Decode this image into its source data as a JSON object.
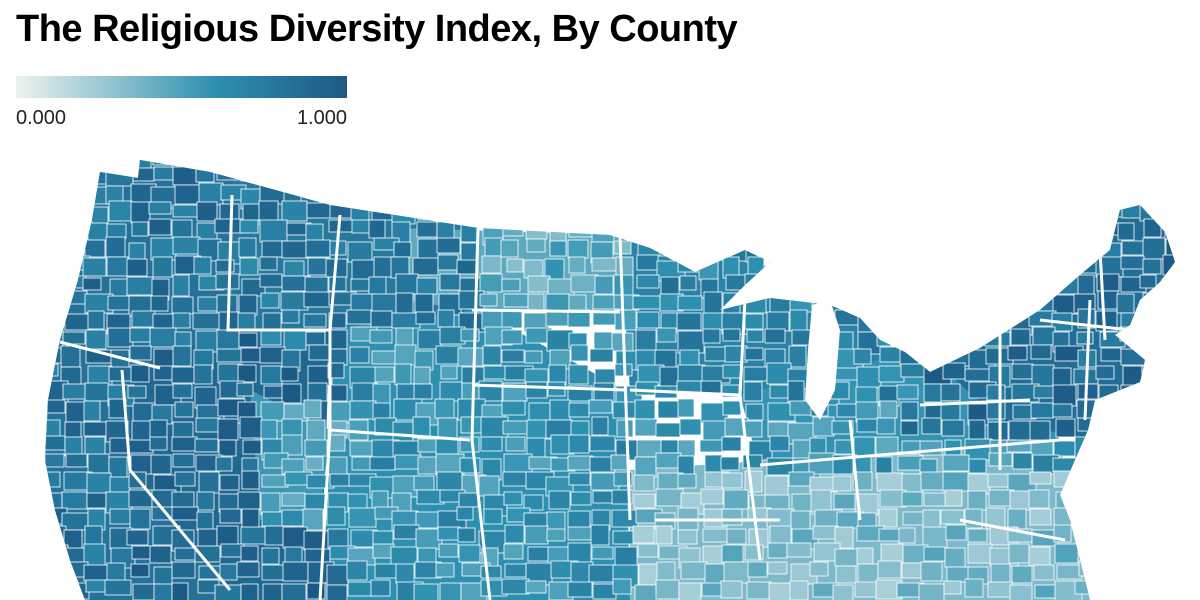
{
  "title": "The Religious Diversity Index, By County",
  "legend": {
    "min_label": "0.000",
    "max_label": "1.000",
    "min_value": 0,
    "max_value": 1,
    "color_low": "#edf3ee",
    "color_mid": "#2e90b0",
    "color_high": "#1c5a86"
  },
  "map": {
    "region": "Contiguous United States",
    "metric": "Religious Diversity Index",
    "border_color": "#ffffff",
    "regional_levels": [
      {
        "region": "west-coast",
        "value": 0.82
      },
      {
        "region": "nevada-basin",
        "value": 0.9
      },
      {
        "region": "northern-rockies",
        "value": 0.78
      },
      {
        "region": "utah",
        "value": 0.55
      },
      {
        "region": "northern-plains",
        "value": 0.45
      },
      {
        "region": "central-plains",
        "value": 0.6
      },
      {
        "region": "upper-midwest",
        "value": 0.7
      },
      {
        "region": "ohio-valley",
        "value": 0.58
      },
      {
        "region": "appalachia-south",
        "value": 0.35
      },
      {
        "region": "northeast",
        "value": 0.86
      }
    ]
  }
}
